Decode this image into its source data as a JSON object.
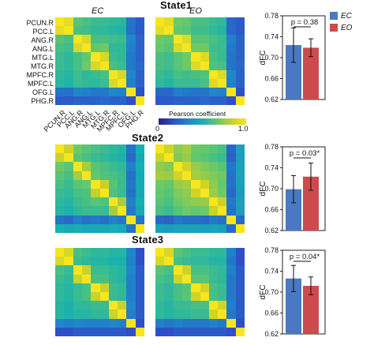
{
  "titles": [
    "State1",
    "State2",
    "State3"
  ],
  "conditions": {
    "ec": "EC",
    "eo": "EO"
  },
  "roi_labels": [
    "PCUN.R",
    "PCC.L",
    "ANG.R",
    "ANG.L",
    "MTG.L",
    "MTG.R",
    "MPFC.R",
    "MPFC.L",
    "OFG.L",
    "PHG.R"
  ],
  "colorbar": {
    "title": "Pearson coefficient",
    "min_label": "0",
    "max_label": "1.0"
  },
  "legend": {
    "ec": "EC",
    "eo": "EO"
  },
  "colors": {
    "ec": "#4a78c2",
    "eo": "#cc4b4e"
  },
  "chart_data": [
    {
      "type": "bar",
      "categories": [
        "EC",
        "EO"
      ],
      "values": [
        0.724,
        0.719
      ],
      "errors": [
        0.033,
        0.017
      ],
      "ylabel": "dFC",
      "ylim": [
        0.62,
        0.78
      ],
      "yticks": [
        "0.62",
        "0.66",
        "0.70",
        "0.74",
        "0.78"
      ],
      "annotation": "p = 0.38"
    },
    {
      "type": "bar",
      "categories": [
        "EC",
        "EO"
      ],
      "values": [
        0.699,
        0.723
      ],
      "errors": [
        0.026,
        0.026
      ],
      "ylabel": "dFC",
      "ylim": [
        0.62,
        0.78
      ],
      "yticks": [
        "0.62",
        "0.66",
        "0.70",
        "0.74",
        "0.78"
      ],
      "annotation": "p = 0.03*"
    },
    {
      "type": "bar",
      "categories": [
        "EC",
        "EO"
      ],
      "values": [
        0.726,
        0.712
      ],
      "errors": [
        0.025,
        0.017
      ],
      "ylabel": "dFC",
      "ylim": [
        0.62,
        0.78
      ],
      "yticks": [
        "0.62",
        "0.66",
        "0.70",
        "0.74",
        "0.78"
      ],
      "annotation": "p = 0.04*"
    },
    {
      "type": "heatmap",
      "rows": [
        "PCUN.R",
        "PCC.L",
        "ANG.R",
        "ANG.L",
        "MTG.L",
        "MTG.R",
        "MPFC.R",
        "MPFC.L",
        "OFG.L",
        "PHG.R"
      ],
      "cols": [
        "PCUN.R",
        "PCC.L",
        "ANG.R",
        "ANG.L",
        "MTG.L",
        "MTG.R",
        "MPFC.R",
        "MPFC.L",
        "OFG.L",
        "PHG.R"
      ],
      "range": [
        0,
        1.0
      ],
      "matrices": {
        "state1_ec": [
          [
            1.0,
            0.92,
            0.58,
            0.55,
            0.52,
            0.52,
            0.5,
            0.49,
            0.25,
            0.18
          ],
          [
            0.92,
            1.0,
            0.55,
            0.53,
            0.5,
            0.5,
            0.48,
            0.47,
            0.24,
            0.18
          ],
          [
            0.58,
            0.55,
            1.0,
            0.86,
            0.55,
            0.55,
            0.53,
            0.52,
            0.3,
            0.2
          ],
          [
            0.55,
            0.53,
            0.86,
            1.0,
            0.6,
            0.62,
            0.5,
            0.5,
            0.28,
            0.2
          ],
          [
            0.52,
            0.5,
            0.55,
            0.6,
            1.0,
            0.86,
            0.52,
            0.5,
            0.26,
            0.2
          ],
          [
            0.52,
            0.5,
            0.55,
            0.62,
            0.86,
            1.0,
            0.55,
            0.52,
            0.26,
            0.22
          ],
          [
            0.5,
            0.48,
            0.53,
            0.5,
            0.52,
            0.55,
            1.0,
            0.86,
            0.3,
            0.2
          ],
          [
            0.49,
            0.47,
            0.52,
            0.5,
            0.5,
            0.52,
            0.86,
            1.0,
            0.28,
            0.2
          ],
          [
            0.25,
            0.24,
            0.3,
            0.28,
            0.26,
            0.26,
            0.3,
            0.28,
            1.0,
            0.15
          ],
          [
            0.18,
            0.18,
            0.2,
            0.2,
            0.2,
            0.22,
            0.2,
            0.2,
            0.15,
            1.0
          ]
        ],
        "state1_eo": [
          [
            1.0,
            0.92,
            0.62,
            0.6,
            0.55,
            0.55,
            0.52,
            0.5,
            0.22,
            0.18
          ],
          [
            0.92,
            1.0,
            0.6,
            0.58,
            0.53,
            0.53,
            0.5,
            0.48,
            0.22,
            0.18
          ],
          [
            0.62,
            0.6,
            1.0,
            0.88,
            0.58,
            0.58,
            0.55,
            0.52,
            0.28,
            0.2
          ],
          [
            0.6,
            0.58,
            0.88,
            1.0,
            0.62,
            0.62,
            0.53,
            0.52,
            0.26,
            0.2
          ],
          [
            0.55,
            0.53,
            0.58,
            0.62,
            1.0,
            0.88,
            0.55,
            0.52,
            0.25,
            0.2
          ],
          [
            0.55,
            0.53,
            0.58,
            0.62,
            0.88,
            1.0,
            0.56,
            0.55,
            0.25,
            0.22
          ],
          [
            0.52,
            0.5,
            0.55,
            0.53,
            0.55,
            0.56,
            1.0,
            0.88,
            0.3,
            0.2
          ],
          [
            0.5,
            0.48,
            0.52,
            0.52,
            0.52,
            0.55,
            0.88,
            1.0,
            0.28,
            0.2
          ],
          [
            0.22,
            0.22,
            0.28,
            0.26,
            0.25,
            0.25,
            0.3,
            0.28,
            1.0,
            0.15
          ],
          [
            0.18,
            0.18,
            0.2,
            0.2,
            0.2,
            0.22,
            0.2,
            0.2,
            0.15,
            1.0
          ]
        ],
        "state2_ec": [
          [
            1.0,
            0.8,
            0.62,
            0.58,
            0.55,
            0.52,
            0.5,
            0.48,
            0.25,
            0.45
          ],
          [
            0.8,
            1.0,
            0.58,
            0.55,
            0.52,
            0.5,
            0.48,
            0.46,
            0.22,
            0.42
          ],
          [
            0.62,
            0.58,
            1.0,
            0.72,
            0.58,
            0.55,
            0.52,
            0.5,
            0.28,
            0.44
          ],
          [
            0.58,
            0.55,
            0.72,
            1.0,
            0.6,
            0.56,
            0.55,
            0.52,
            0.24,
            0.42
          ],
          [
            0.55,
            0.52,
            0.58,
            0.6,
            1.0,
            0.78,
            0.58,
            0.52,
            0.26,
            0.42
          ],
          [
            0.52,
            0.5,
            0.55,
            0.56,
            0.78,
            1.0,
            0.56,
            0.52,
            0.24,
            0.42
          ],
          [
            0.5,
            0.48,
            0.52,
            0.55,
            0.58,
            0.56,
            1.0,
            0.72,
            0.28,
            0.44
          ],
          [
            0.48,
            0.46,
            0.5,
            0.52,
            0.52,
            0.52,
            0.72,
            1.0,
            0.26,
            0.42
          ],
          [
            0.25,
            0.22,
            0.28,
            0.24,
            0.26,
            0.24,
            0.28,
            0.26,
            1.0,
            0.25
          ],
          [
            0.45,
            0.42,
            0.44,
            0.42,
            0.42,
            0.42,
            0.44,
            0.42,
            0.25,
            1.0
          ]
        ],
        "state2_eo": [
          [
            1.0,
            0.82,
            0.68,
            0.72,
            0.62,
            0.6,
            0.58,
            0.55,
            0.22,
            0.4
          ],
          [
            0.82,
            1.0,
            0.65,
            0.7,
            0.6,
            0.58,
            0.55,
            0.52,
            0.2,
            0.38
          ],
          [
            0.68,
            0.65,
            1.0,
            0.82,
            0.7,
            0.65,
            0.62,
            0.58,
            0.26,
            0.4
          ],
          [
            0.72,
            0.7,
            0.82,
            1.0,
            0.72,
            0.68,
            0.65,
            0.62,
            0.24,
            0.4
          ],
          [
            0.62,
            0.6,
            0.7,
            0.72,
            1.0,
            0.82,
            0.68,
            0.6,
            0.24,
            0.4
          ],
          [
            0.6,
            0.58,
            0.65,
            0.68,
            0.82,
            1.0,
            0.7,
            0.62,
            0.22,
            0.38
          ],
          [
            0.58,
            0.55,
            0.62,
            0.65,
            0.68,
            0.7,
            1.0,
            0.8,
            0.26,
            0.4
          ],
          [
            0.55,
            0.52,
            0.58,
            0.62,
            0.6,
            0.62,
            0.8,
            1.0,
            0.24,
            0.38
          ],
          [
            0.22,
            0.2,
            0.26,
            0.24,
            0.24,
            0.22,
            0.26,
            0.24,
            1.0,
            0.22
          ],
          [
            0.4,
            0.38,
            0.4,
            0.4,
            0.4,
            0.38,
            0.4,
            0.38,
            0.22,
            1.0
          ]
        ],
        "state3_ec": [
          [
            1.0,
            0.86,
            0.55,
            0.52,
            0.5,
            0.5,
            0.48,
            0.48,
            0.3,
            0.15
          ],
          [
            0.86,
            1.0,
            0.52,
            0.5,
            0.48,
            0.48,
            0.46,
            0.46,
            0.28,
            0.15
          ],
          [
            0.55,
            0.52,
            1.0,
            0.8,
            0.52,
            0.52,
            0.5,
            0.48,
            0.3,
            0.18
          ],
          [
            0.52,
            0.5,
            0.8,
            1.0,
            0.55,
            0.55,
            0.5,
            0.48,
            0.28,
            0.18
          ],
          [
            0.5,
            0.48,
            0.52,
            0.55,
            1.0,
            0.8,
            0.52,
            0.5,
            0.28,
            0.18
          ],
          [
            0.5,
            0.48,
            0.52,
            0.55,
            0.8,
            1.0,
            0.52,
            0.5,
            0.28,
            0.18
          ],
          [
            0.48,
            0.46,
            0.5,
            0.5,
            0.52,
            0.52,
            1.0,
            0.8,
            0.3,
            0.18
          ],
          [
            0.48,
            0.46,
            0.48,
            0.48,
            0.5,
            0.5,
            0.8,
            1.0,
            0.28,
            0.18
          ],
          [
            0.3,
            0.28,
            0.3,
            0.28,
            0.28,
            0.28,
            0.3,
            0.28,
            1.0,
            0.15
          ],
          [
            0.15,
            0.15,
            0.18,
            0.18,
            0.18,
            0.18,
            0.18,
            0.18,
            0.15,
            1.0
          ]
        ],
        "state3_eo": [
          [
            1.0,
            0.86,
            0.58,
            0.55,
            0.52,
            0.52,
            0.5,
            0.5,
            0.28,
            0.15
          ],
          [
            0.86,
            1.0,
            0.55,
            0.52,
            0.5,
            0.5,
            0.48,
            0.48,
            0.26,
            0.15
          ],
          [
            0.58,
            0.55,
            1.0,
            0.82,
            0.55,
            0.55,
            0.52,
            0.5,
            0.28,
            0.18
          ],
          [
            0.55,
            0.52,
            0.82,
            1.0,
            0.58,
            0.58,
            0.52,
            0.5,
            0.26,
            0.18
          ],
          [
            0.52,
            0.5,
            0.55,
            0.58,
            1.0,
            0.82,
            0.55,
            0.52,
            0.26,
            0.18
          ],
          [
            0.52,
            0.5,
            0.55,
            0.58,
            0.82,
            1.0,
            0.55,
            0.52,
            0.26,
            0.18
          ],
          [
            0.5,
            0.48,
            0.52,
            0.52,
            0.55,
            0.55,
            1.0,
            0.82,
            0.28,
            0.18
          ],
          [
            0.5,
            0.48,
            0.5,
            0.5,
            0.52,
            0.52,
            0.82,
            1.0,
            0.26,
            0.18
          ],
          [
            0.28,
            0.26,
            0.28,
            0.26,
            0.26,
            0.26,
            0.28,
            0.26,
            1.0,
            0.15
          ],
          [
            0.15,
            0.15,
            0.18,
            0.18,
            0.18,
            0.18,
            0.18,
            0.18,
            0.15,
            1.0
          ]
        ]
      }
    }
  ]
}
